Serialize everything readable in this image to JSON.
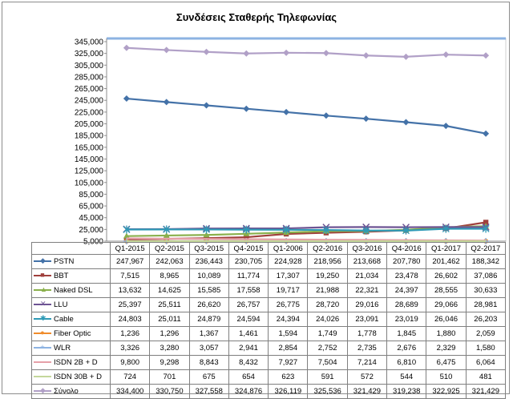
{
  "chart_data": {
    "type": "line",
    "title": "Συνδέσεις Σταθερής Τηλεφωνίας",
    "categories": [
      "Q1-2015",
      "Q2-2015",
      "Q3-2015",
      "Q4-2015",
      "Q1-2006",
      "Q2-2016",
      "Q3-2016",
      "Q4-2016",
      "Q1-2017",
      "Q2-2017"
    ],
    "ylim": [
      5000,
      345000
    ],
    "yticks": [
      5000,
      25000,
      45000,
      65000,
      85000,
      105000,
      125000,
      145000,
      165000,
      185000,
      205000,
      225000,
      245000,
      265000,
      285000,
      305000,
      325000,
      345000
    ],
    "ytick_labels": [
      "5,000",
      "25,000",
      "45,000",
      "65,000",
      "85,000",
      "105,000",
      "125,000",
      "145,000",
      "165,000",
      "185,000",
      "205,000",
      "225,000",
      "245,000",
      "265,000",
      "285,000",
      "305,000",
      "325,000",
      "345,000"
    ],
    "grid": false,
    "legend": "data-table",
    "series": [
      {
        "name": "PSTN",
        "color": "#4472a8",
        "marker": "diamond",
        "values": [
          247967,
          242063,
          236443,
          230705,
          224928,
          218956,
          213668,
          207780,
          201462,
          188342
        ],
        "labels": [
          "247,967",
          "242,063",
          "236,443",
          "230,705",
          "224,928",
          "218,956",
          "213,668",
          "207,780",
          "201,462",
          "188,342"
        ]
      },
      {
        "name": "BBT",
        "color": "#a0403c",
        "marker": "square",
        "values": [
          7515,
          8965,
          10089,
          11774,
          17307,
          19250,
          21034,
          23478,
          26602,
          37086
        ],
        "labels": [
          "7,515",
          "8,965",
          "10,089",
          "11,774",
          "17,307",
          "19,250",
          "21,034",
          "23,478",
          "26,602",
          "37,086"
        ]
      },
      {
        "name": "Naked DSL",
        "color": "#8ab04c",
        "marker": "triangle",
        "values": [
          13632,
          14625,
          15585,
          17558,
          19717,
          21988,
          22321,
          24397,
          28555,
          30633
        ],
        "labels": [
          "13,632",
          "14,625",
          "15,585",
          "17,558",
          "19,717",
          "21,988",
          "22,321",
          "24,397",
          "28,555",
          "30,633"
        ]
      },
      {
        "name": "LLU",
        "color": "#6e5494",
        "marker": "x",
        "values": [
          25397,
          25511,
          26620,
          26757,
          26775,
          28720,
          29016,
          28689,
          29066,
          28981
        ],
        "labels": [
          "25,397",
          "25,511",
          "26,620",
          "26,757",
          "26,775",
          "28,720",
          "29,016",
          "28,689",
          "29,066",
          "28,981"
        ]
      },
      {
        "name": "Cable",
        "color": "#2f9ab6",
        "marker": "star",
        "values": [
          24803,
          25011,
          24879,
          24594,
          24394,
          24026,
          23091,
          23019,
          26046,
          26203
        ],
        "labels": [
          "24,803",
          "25,011",
          "24,879",
          "24,594",
          "24,394",
          "24,026",
          "23,091",
          "23,019",
          "26,046",
          "26,203"
        ]
      },
      {
        "name": "Fiber Optic",
        "color": "#f08c2c",
        "marker": "circle",
        "values": [
          1236,
          1296,
          1367,
          1461,
          1594,
          1749,
          1778,
          1845,
          1880,
          2059
        ],
        "labels": [
          "1,236",
          "1,296",
          "1,367",
          "1,461",
          "1,594",
          "1,749",
          "1,778",
          "1,845",
          "1,880",
          "2,059"
        ]
      },
      {
        "name": "WLR",
        "color": "#8db3e2",
        "marker": "plus",
        "values": [
          3326,
          3280,
          3057,
          2941,
          2854,
          2752,
          2735,
          2676,
          2329,
          1580
        ],
        "labels": [
          "3,326",
          "3,280",
          "3,057",
          "2,941",
          "2,854",
          "2,752",
          "2,735",
          "2,676",
          "2,329",
          "1,580"
        ]
      },
      {
        "name": "ISDN 2B + D",
        "color": "#e6a0a8",
        "marker": "none",
        "values": [
          9800,
          9298,
          8843,
          8432,
          7927,
          7504,
          7214,
          6810,
          6475,
          6064
        ],
        "labels": [
          "9,800",
          "9,298",
          "8,843",
          "8,432",
          "7,927",
          "7,504",
          "7,214",
          "6,810",
          "6,475",
          "6,064"
        ]
      },
      {
        "name": "ISDN 30B + D",
        "color": "#c4d79b",
        "marker": "none",
        "values": [
          724,
          701,
          675,
          654,
          623,
          591,
          572,
          544,
          510,
          481
        ],
        "labels": [
          "724",
          "701",
          "675",
          "654",
          "623",
          "591",
          "572",
          "544",
          "510",
          "481"
        ]
      },
      {
        "name": "Σύνολο",
        "color": "#b1a0c7",
        "marker": "diamond",
        "values": [
          334400,
          330750,
          327558,
          324876,
          326119,
          325536,
          321429,
          319238,
          322925,
          321429
        ],
        "labels": [
          "334,400",
          "330,750",
          "327,558",
          "324,876",
          "326,119",
          "325,536",
          "321,429",
          "319,238",
          "322,925",
          "321,429"
        ]
      }
    ]
  }
}
